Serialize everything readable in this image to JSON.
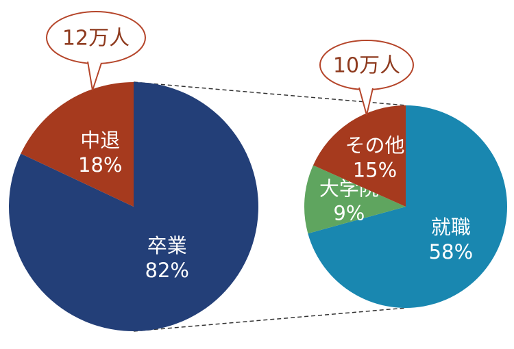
{
  "chart_data": [
    {
      "type": "pie",
      "categories": [
        "卒業",
        "中退"
      ],
      "values": [
        82,
        18
      ],
      "value_labels": [
        "82%",
        "18%"
      ],
      "colors": [
        "#233f78",
        "#a63a1e"
      ],
      "annotation": "12万人"
    },
    {
      "type": "pie",
      "categories": [
        "就職",
        "大学院",
        "その他"
      ],
      "values": [
        58,
        9,
        15
      ],
      "value_labels": [
        "58%",
        "9%",
        "15%"
      ],
      "colors": [
        "#1987b0",
        "#5fa55f",
        "#a63a1e"
      ],
      "annotation": "10万人"
    }
  ]
}
